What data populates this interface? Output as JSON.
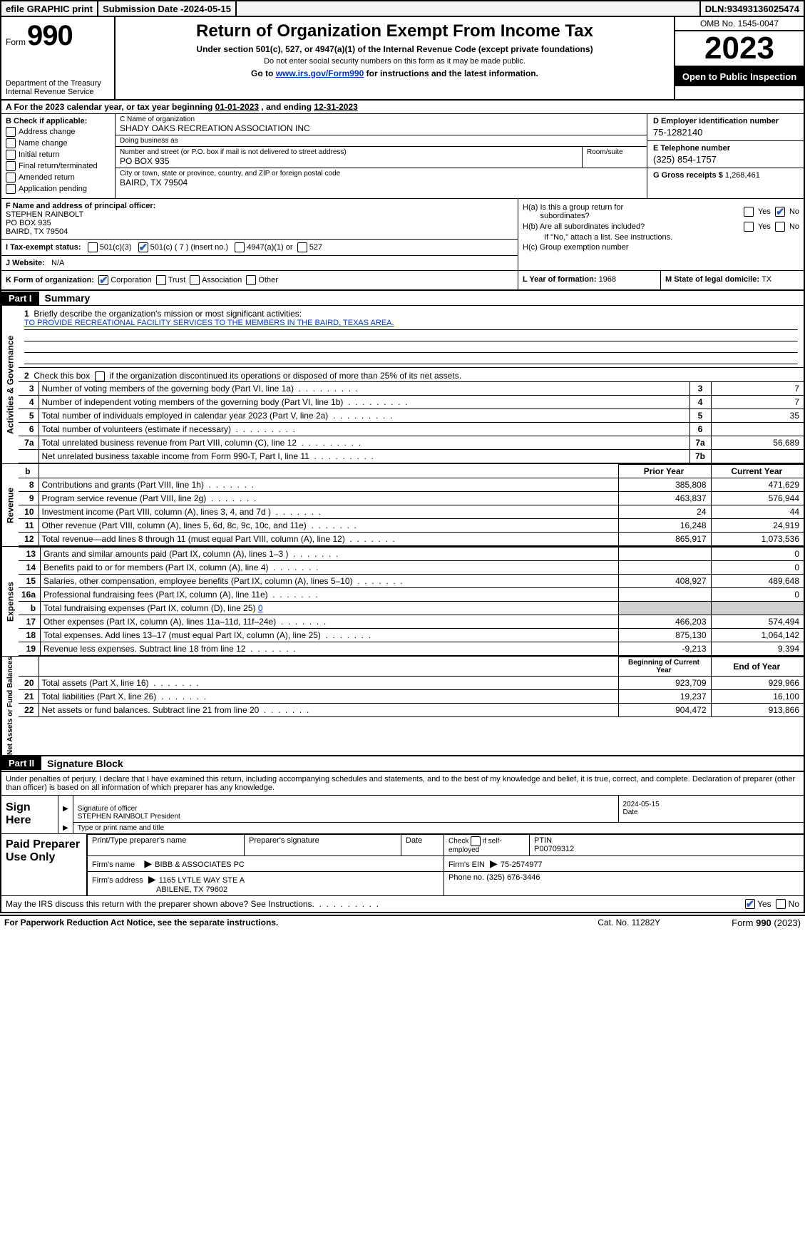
{
  "topbar": {
    "efile": "efile GRAPHIC print",
    "subdate_label": "Submission Date - ",
    "subdate": "2024-05-15",
    "dln_label": "DLN: ",
    "dln": "93493136025474"
  },
  "header": {
    "form_word": "Form",
    "form_num": "990",
    "dept": "Department of the Treasury\nInternal Revenue Service",
    "title": "Return of Organization Exempt From Income Tax",
    "sub1": "Under section 501(c), 527, or 4947(a)(1) of the Internal Revenue Code (except private foundations)",
    "sub2": "Do not enter social security numbers on this form as it may be made public.",
    "sub3_pre": "Go to ",
    "sub3_link": "www.irs.gov/Form990",
    "sub3_post": " for instructions and the latest information.",
    "omb": "OMB No. 1545-0047",
    "year": "2023",
    "open": "Open to Public Inspection"
  },
  "lineA": {
    "pre": "A  For the 2023 calendar year, or tax year beginning ",
    "begin": "01-01-2023",
    "mid": "   , and ending ",
    "end": "12-31-2023"
  },
  "B": {
    "header": "B Check if applicable:",
    "items": [
      "Address change",
      "Name change",
      "Initial return",
      "Final return/terminated",
      "Amended return",
      "Application pending"
    ]
  },
  "C": {
    "name_lab": "C Name of organization",
    "name": "SHADY OAKS RECREATION ASSOCIATION INC",
    "dba_lab": "Doing business as",
    "dba": "",
    "street_lab": "Number and street (or P.O. box if mail is not delivered to street address)",
    "room_lab": "Room/suite",
    "street": "PO BOX 935",
    "city_lab": "City or town, state or province, country, and ZIP or foreign postal code",
    "city": "BAIRD, TX   79504"
  },
  "D": {
    "lab": "D Employer identification number",
    "val": "75-1282140"
  },
  "E": {
    "lab": "E Telephone number",
    "val": "(325) 854-1757"
  },
  "G": {
    "lab": "G Gross receipts $ ",
    "val": "1,268,461"
  },
  "F": {
    "lab": "F  Name and address of principal officer:",
    "name": "STEPHEN RAINBOLT",
    "street": "PO BOX 935",
    "city": "BAIRD, TX   79504"
  },
  "I": {
    "lab": "I   Tax-exempt status:",
    "o1": "501(c)(3)",
    "o2": "501(c) ( 7 ) (insert no.)",
    "o3": "4947(a)(1) or",
    "o4": "527"
  },
  "J": {
    "lab": "J   Website:",
    "val": "N/A"
  },
  "H": {
    "a1": "H(a)  Is this a group return for",
    "a2": "subordinates?",
    "b1": "H(b)  Are all subordinates included?",
    "bnote": "If \"No,\" attach a list. See instructions.",
    "c": "H(c)  Group exemption number",
    "yes": "Yes",
    "no": "No"
  },
  "K": {
    "lab": "K Form of organization:",
    "opts": [
      "Corporation",
      "Trust",
      "Association",
      "Other"
    ]
  },
  "L": {
    "lab": "L Year of formation: ",
    "val": "1968"
  },
  "M": {
    "lab": "M State of legal domicile: ",
    "val": "TX"
  },
  "partI": {
    "badge": "Part I",
    "title": "Summary"
  },
  "briefly": {
    "num": "1",
    "lab": "Briefly describe the organization's mission or most significant activities:",
    "text": "TO PROVIDE RECREATIONAL FACILITY SERVICES TO THE MEMBERS IN THE BAIRD, TEXAS AREA."
  },
  "gov": {
    "vlabel": "Activities & Governance",
    "l2": "Check this box          if the organization discontinued its operations or disposed of more than 25% of its net assets.",
    "rows": [
      {
        "n": "3",
        "d": "Number of voting members of the governing body (Part VI, line 1a)",
        "box": "3",
        "v": "7"
      },
      {
        "n": "4",
        "d": "Number of independent voting members of the governing body (Part VI, line 1b)",
        "box": "4",
        "v": "7"
      },
      {
        "n": "5",
        "d": "Total number of individuals employed in calendar year 2023 (Part V, line 2a)",
        "box": "5",
        "v": "35"
      },
      {
        "n": "6",
        "d": "Total number of volunteers (estimate if necessary)",
        "box": "6",
        "v": ""
      },
      {
        "n": "7a",
        "d": "Total unrelated business revenue from Part VIII, column (C), line 12",
        "box": "7a",
        "v": "56,689"
      },
      {
        "n": "",
        "d": "Net unrelated business taxable income from Form 990-T, Part I, line 11",
        "box": "7b",
        "v": ""
      }
    ]
  },
  "rev": {
    "vlabel": "Revenue",
    "hdr_prior": "Prior Year",
    "hdr_curr": "Current Year",
    "rows": [
      {
        "n": "8",
        "d": "Contributions and grants (Part VIII, line 1h)",
        "p": "385,808",
        "c": "471,629"
      },
      {
        "n": "9",
        "d": "Program service revenue (Part VIII, line 2g)",
        "p": "463,837",
        "c": "576,944"
      },
      {
        "n": "10",
        "d": "Investment income (Part VIII, column (A), lines 3, 4, and 7d )",
        "p": "24",
        "c": "44"
      },
      {
        "n": "11",
        "d": "Other revenue (Part VIII, column (A), lines 5, 6d, 8c, 9c, 10c, and 11e)",
        "p": "16,248",
        "c": "24,919"
      },
      {
        "n": "12",
        "d": "Total revenue—add lines 8 through 11 (must equal Part VIII, column (A), line 12)",
        "p": "865,917",
        "c": "1,073,536"
      }
    ]
  },
  "exp": {
    "vlabel": "Expenses",
    "rows": [
      {
        "n": "13",
        "d": "Grants and similar amounts paid (Part IX, column (A), lines 1–3 )",
        "p": "",
        "c": "0"
      },
      {
        "n": "14",
        "d": "Benefits paid to or for members (Part IX, column (A), line 4)",
        "p": "",
        "c": "0"
      },
      {
        "n": "15",
        "d": "Salaries, other compensation, employee benefits (Part IX, column (A), lines 5–10)",
        "p": "408,927",
        "c": "489,648"
      },
      {
        "n": "16a",
        "d": "Professional fundraising fees (Part IX, column (A), line 11e)",
        "p": "",
        "c": "0"
      },
      {
        "n": "b",
        "d": "Total fundraising expenses (Part IX, column (D), line 25) ",
        "link": "0",
        "p": "shade",
        "c": "shade"
      },
      {
        "n": "17",
        "d": "Other expenses (Part IX, column (A), lines 11a–11d, 11f–24e)",
        "p": "466,203",
        "c": "574,494"
      },
      {
        "n": "18",
        "d": "Total expenses. Add lines 13–17 (must equal Part IX, column (A), line 25)",
        "p": "875,130",
        "c": "1,064,142"
      },
      {
        "n": "19",
        "d": "Revenue less expenses. Subtract line 18 from line 12",
        "p": "-9,213",
        "c": "9,394"
      }
    ]
  },
  "net": {
    "vlabel": "Net Assets or Fund Balances",
    "hdr_begin": "Beginning of Current Year",
    "hdr_end": "End of Year",
    "rows": [
      {
        "n": "20",
        "d": "Total assets (Part X, line 16)",
        "p": "923,709",
        "c": "929,966"
      },
      {
        "n": "21",
        "d": "Total liabilities (Part X, line 26)",
        "p": "19,237",
        "c": "16,100"
      },
      {
        "n": "22",
        "d": "Net assets or fund balances. Subtract line 21 from line 20",
        "p": "904,472",
        "c": "913,866"
      }
    ]
  },
  "partII": {
    "badge": "Part II",
    "title": "Signature Block",
    "text": "Under penalties of perjury, I declare that I have examined this return, including accompanying schedules and statements, and to the best of my knowledge and belief, it is true, correct, and complete. Declaration of preparer (other than officer) is based on all information of which preparer has any knowledge."
  },
  "sign": {
    "left1": "Sign",
    "left2": "Here",
    "date": "2024-05-15",
    "sig_lab": "Signature of officer",
    "officer": "STEPHEN RAINBOLT President",
    "name_lab": "Type or print name and title",
    "date_lab": "Date"
  },
  "paid": {
    "left": "Paid Preparer Use Only",
    "col1": "Print/Type preparer's name",
    "col2": "Preparer's signature",
    "col3": "Date",
    "col4a": "Check           if self-employed",
    "col5_lab": "PTIN",
    "col5": "P00709312",
    "firm_name_lab": "Firm's name",
    "firm_name": "BIBB & ASSOCIATES PC",
    "firm_ein_lab": "Firm's EIN",
    "firm_ein": "75-2574977",
    "firm_addr_lab": "Firm's address",
    "firm_addr1": "1165 LYTLE WAY STE A",
    "firm_addr2": "ABILENE, TX   79602",
    "phone_lab": "Phone no. ",
    "phone": "(325) 676-3446"
  },
  "discuss": {
    "text": "May the IRS discuss this return with the preparer shown above? See Instructions.",
    "yes": "Yes",
    "no": "No"
  },
  "footer": {
    "left": "For Paperwork Reduction Act Notice, see the separate instructions.",
    "mid": "Cat. No. 11282Y",
    "right_a": "Form ",
    "right_b": "990",
    "right_c": " (2023)"
  }
}
